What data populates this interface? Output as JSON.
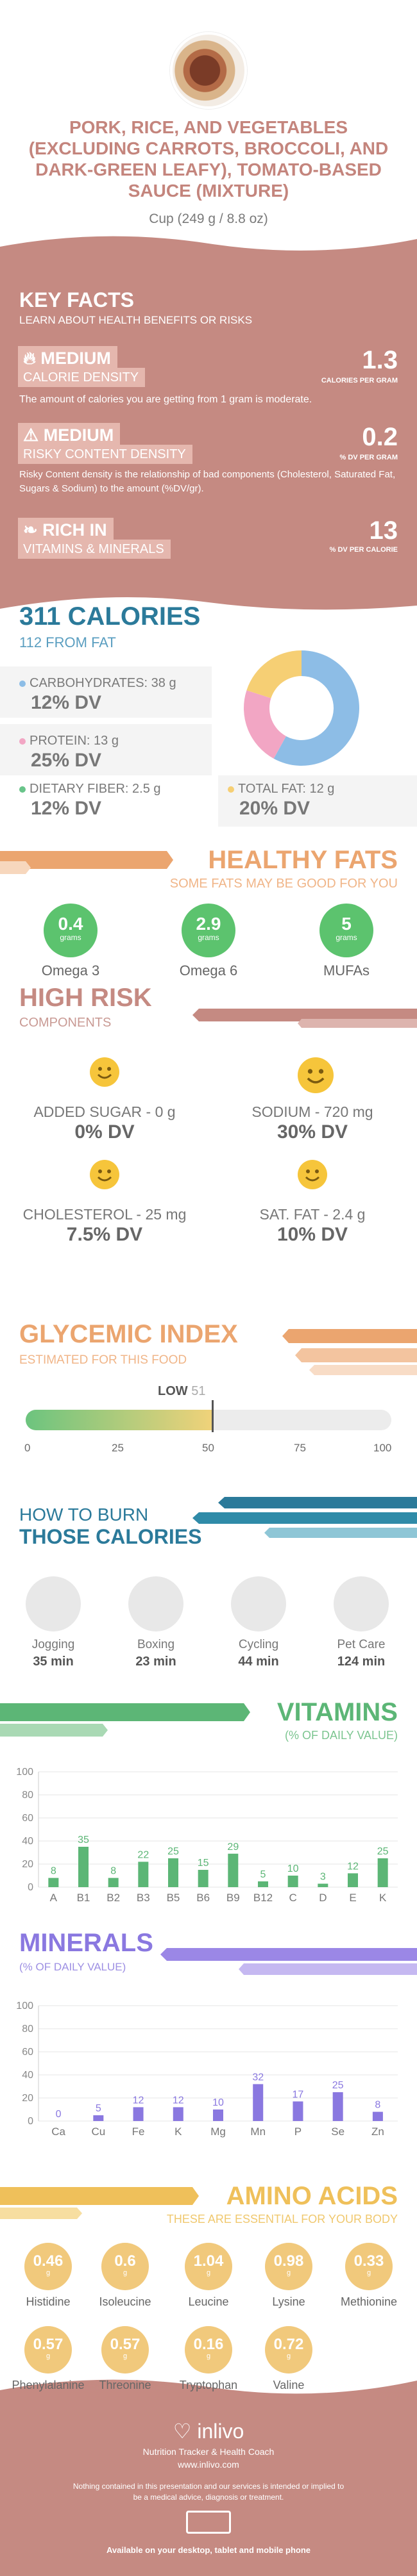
{
  "header": {
    "title": "PORK, RICE, AND VEGETABLES (EXCLUDING CARROTS, BROCCOLI, AND DARK-GREEN LEAFY), TOMATO-BASED SAUCE (MIXTURE)",
    "serving": "Cup (249 g / 8.8 oz)"
  },
  "key_facts": {
    "title": "KEY FACTS",
    "subtitle": "LEARN ABOUT HEALTH BENEFITS OR RISKS",
    "calorie_density": {
      "badge": "MEDIUM",
      "label": "CALORIE DENSITY",
      "value": "1.3",
      "unit": "CALORIES PER GRAM",
      "desc": "The amount of calories you are getting from 1 gram is moderate."
    },
    "risky_density": {
      "badge": "MEDIUM",
      "label": "RISKY CONTENT DENSITY",
      "value": "0.2",
      "unit": "% DV PER GRAM",
      "desc": "Risky Content density is the relationship of bad components (Cholesterol, Saturated Fat, Sugars & Sodium) to the amount (%DV/gr)."
    },
    "rich_in": {
      "badge": "RICH IN",
      "label": "VITAMINS & MINERALS",
      "value": "13",
      "unit": "% DV PER CALORIE"
    }
  },
  "calories": {
    "title": "311 CALORIES",
    "from_fat": "112 FROM FAT",
    "carbs": {
      "label": "CARBOHYDRATES: 38 g",
      "dv": "12% DV",
      "color": "#8dbde6"
    },
    "protein": {
      "label": "PROTEIN: 13 g",
      "dv": "25% DV",
      "color": "#f2a6c4"
    },
    "fiber": {
      "label": "DIETARY FIBER: 2.5 g",
      "dv": "12% DV",
      "color": "#69c48a"
    },
    "fat": {
      "label": "TOTAL FAT: 12 g",
      "dv": "20% DV",
      "color": "#f6cf74"
    }
  },
  "pie_data": {
    "type": "pie",
    "values": [
      58,
      22,
      20
    ],
    "colors": [
      "#8dbde6",
      "#f2a6c4",
      "#f6cf74"
    ]
  },
  "healthy_fats": {
    "title": "HEALTHY FATS",
    "subtitle": "SOME FATS MAY BE GOOD FOR YOU",
    "items": [
      {
        "value": "0.4",
        "unit": "grams",
        "name": "Omega 3"
      },
      {
        "value": "2.9",
        "unit": "grams",
        "name": "Omega 6"
      },
      {
        "value": "5",
        "unit": "grams",
        "name": "MUFAs"
      }
    ]
  },
  "high_risk": {
    "title": "HIGH RISK",
    "subtitle": "COMPONENTS",
    "items": [
      {
        "label": "ADDED SUGAR - 0 g",
        "dv": "0% DV"
      },
      {
        "label": "SODIUM - 720 mg",
        "dv": "30% DV"
      },
      {
        "label": "CHOLESTEROL - 25 mg",
        "dv": "7.5% DV"
      },
      {
        "label": "SAT. FAT - 2.4 g",
        "dv": "10% DV"
      }
    ]
  },
  "glycemic": {
    "title": "GLYCEMIC INDEX",
    "subtitle": "ESTIMATED FOR THIS FOOD",
    "level": "LOW",
    "value": 51,
    "value_label": "51",
    "ticks": [
      "0",
      "25",
      "50",
      "75",
      "100"
    ]
  },
  "burn": {
    "title1": "HOW TO BURN",
    "title2": "THOSE CALORIES",
    "items": [
      {
        "name": "Jogging",
        "min": "35 min"
      },
      {
        "name": "Boxing",
        "min": "23 min"
      },
      {
        "name": "Cycling",
        "min": "44 min"
      },
      {
        "name": "Pet Care",
        "min": "124 min"
      }
    ]
  },
  "vitamins": {
    "title": "VITAMINS",
    "subtitle": "(% OF DAILY VALUE)"
  },
  "chart_data": [
    {
      "type": "bar",
      "categories": [
        "A",
        "B1",
        "B2",
        "B3",
        "B5",
        "B6",
        "B9",
        "B12",
        "C",
        "D",
        "E",
        "K"
      ],
      "values": [
        8,
        35,
        8,
        22,
        25,
        15,
        29,
        5,
        10,
        3,
        12,
        25
      ],
      "ylim": [
        0,
        100
      ],
      "yticks": [
        "0",
        "20",
        "40",
        "60",
        "80",
        "100"
      ],
      "color": "#5cb676"
    },
    {
      "type": "bar",
      "categories": [
        "Ca",
        "Cu",
        "Fe",
        "K",
        "Mg",
        "Mn",
        "P",
        "Se",
        "Zn"
      ],
      "values": [
        0,
        5,
        12,
        12,
        10,
        32,
        17,
        25,
        8
      ],
      "ylim": [
        0,
        100
      ],
      "yticks": [
        "0",
        "20",
        "40",
        "60",
        "80",
        "100"
      ],
      "color": "#8a78e0"
    }
  ],
  "minerals": {
    "title": "MINERALS",
    "subtitle": "(% OF DAILY VALUE)"
  },
  "amino": {
    "title": "AMINO ACIDS",
    "subtitle": "THESE ARE ESSENTIAL FOR YOUR BODY",
    "items": [
      {
        "value": "0.46",
        "unit": "g",
        "name": "Histidine"
      },
      {
        "value": "0.6",
        "unit": "g",
        "name": "Isoleucine"
      },
      {
        "value": "1.04",
        "unit": "g",
        "name": "Leucine"
      },
      {
        "value": "0.98",
        "unit": "g",
        "name": "Lysine"
      },
      {
        "value": "0.33",
        "unit": "g",
        "name": "Methionine"
      },
      {
        "value": "0.57",
        "unit": "g",
        "name": "Phenylalanine"
      },
      {
        "value": "0.57",
        "unit": "g",
        "name": "Threonine"
      },
      {
        "value": "0.16",
        "unit": "g",
        "name": "Tryptophan"
      },
      {
        "value": "0.72",
        "unit": "g",
        "name": "Valine"
      }
    ]
  },
  "footer": {
    "brand": "inlivo",
    "tagline": "Nutrition Tracker & Health Coach",
    "url": "www.inlivo.com",
    "disclaimer": "Nothing contained in this presentation and our services is intended or implied to be a medical advice, diagnosis or treatment.",
    "platforms": "Available on your desktop, tablet and mobile phone"
  },
  "colors": {
    "brand": "#c58a82",
    "green": "#5cc36e",
    "orange": "#eba56f",
    "purple": "#8a78e0",
    "navy": "#2b7a9a"
  }
}
